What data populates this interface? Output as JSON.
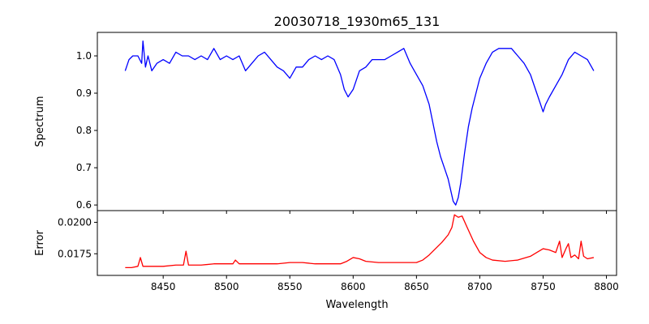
{
  "chart_data": [
    {
      "type": "line",
      "title": "20030718_1930m65_131",
      "xlabel": "",
      "ylabel": "Spectrum",
      "xlim": [
        8398,
        8808
      ],
      "ylim": [
        0.585,
        1.063
      ],
      "xticks": [
        8450,
        8500,
        8550,
        8600,
        8650,
        8700,
        8750,
        8800
      ],
      "yticks": [
        0.6,
        0.7,
        0.8,
        0.9,
        1.0
      ],
      "ytick_labels": [
        "0.6",
        "0.7",
        "0.8",
        "0.9",
        "1.0"
      ],
      "show_xtick_labels": false,
      "grid": false,
      "series": [
        {
          "color": "#0000ff",
          "x": [
            8420,
            8423,
            8426,
            8430,
            8433,
            8434,
            8436,
            8438,
            8441,
            8445,
            8450,
            8455,
            8460,
            8465,
            8470,
            8475,
            8480,
            8485,
            8490,
            8495,
            8500,
            8505,
            8510,
            8515,
            8520,
            8525,
            8530,
            8535,
            8540,
            8545,
            8550,
            8555,
            8560,
            8565,
            8570,
            8575,
            8580,
            8585,
            8590,
            8593,
            8596,
            8600,
            8605,
            8610,
            8615,
            8620,
            8625,
            8630,
            8635,
            8640,
            8645,
            8650,
            8655,
            8660,
            8663,
            8666,
            8669,
            8672,
            8675,
            8677,
            8679,
            8681,
            8683,
            8685,
            8688,
            8691,
            8694,
            8697,
            8700,
            8705,
            8710,
            8715,
            8720,
            8725,
            8730,
            8735,
            8740,
            8745,
            8748,
            8750,
            8752,
            8755,
            8760,
            8765,
            8770,
            8775,
            8780,
            8785,
            8790
          ],
          "y": [
            0.96,
            0.99,
            1.0,
            1.0,
            0.98,
            1.04,
            0.97,
            1.0,
            0.96,
            0.98,
            0.99,
            0.98,
            1.01,
            1.0,
            1.0,
            0.99,
            1.0,
            0.99,
            1.02,
            0.99,
            1.0,
            0.99,
            1.0,
            0.96,
            0.98,
            1.0,
            1.01,
            0.99,
            0.97,
            0.96,
            0.94,
            0.97,
            0.97,
            0.99,
            1.0,
            0.99,
            1.0,
            0.99,
            0.95,
            0.91,
            0.89,
            0.91,
            0.96,
            0.97,
            0.99,
            0.99,
            0.99,
            1.0,
            1.01,
            1.02,
            0.98,
            0.95,
            0.92,
            0.87,
            0.82,
            0.77,
            0.73,
            0.7,
            0.67,
            0.64,
            0.61,
            0.6,
            0.62,
            0.66,
            0.74,
            0.81,
            0.86,
            0.9,
            0.94,
            0.98,
            1.01,
            1.02,
            1.02,
            1.02,
            1.0,
            0.98,
            0.95,
            0.9,
            0.87,
            0.85,
            0.87,
            0.89,
            0.92,
            0.95,
            0.99,
            1.01,
            1.0,
            0.99,
            0.96
          ]
        }
      ]
    },
    {
      "type": "line",
      "title": "",
      "xlabel": "Wavelength",
      "ylabel": "Error",
      "xlim": [
        8398,
        8808
      ],
      "ylim": [
        0.01578,
        0.02093
      ],
      "xticks": [
        8450,
        8500,
        8550,
        8600,
        8650,
        8700,
        8750,
        8800
      ],
      "xtick_labels": [
        "8450",
        "8500",
        "8550",
        "8600",
        "8650",
        "8700",
        "8750",
        "8800"
      ],
      "yticks": [
        0.0175,
        0.02
      ],
      "ytick_labels": [
        "0.0175",
        "0.0200"
      ],
      "grid": false,
      "series": [
        {
          "color": "#ff0000",
          "x": [
            8420,
            8425,
            8430,
            8432,
            8434,
            8436,
            8440,
            8450,
            8460,
            8466,
            8468,
            8470,
            8480,
            8490,
            8500,
            8505,
            8507,
            8510,
            8520,
            8530,
            8540,
            8550,
            8560,
            8570,
            8580,
            8590,
            8595,
            8600,
            8605,
            8610,
            8620,
            8630,
            8640,
            8650,
            8655,
            8660,
            8665,
            8670,
            8675,
            8678,
            8680,
            8683,
            8686,
            8690,
            8695,
            8700,
            8705,
            8710,
            8720,
            8730,
            8740,
            8745,
            8750,
            8755,
            8760,
            8763,
            8765,
            8768,
            8770,
            8772,
            8775,
            8778,
            8780,
            8782,
            8785,
            8790
          ],
          "y": [
            0.0164,
            0.0164,
            0.0165,
            0.0172,
            0.0165,
            0.0165,
            0.0165,
            0.0165,
            0.0166,
            0.0166,
            0.0177,
            0.0166,
            0.0166,
            0.0167,
            0.0167,
            0.0167,
            0.017,
            0.0167,
            0.0167,
            0.0167,
            0.0167,
            0.0168,
            0.0168,
            0.0167,
            0.0167,
            0.0167,
            0.0169,
            0.0172,
            0.0171,
            0.0169,
            0.0168,
            0.0168,
            0.0168,
            0.0168,
            0.017,
            0.0174,
            0.0179,
            0.0184,
            0.019,
            0.0196,
            0.0206,
            0.0204,
            0.0205,
            0.0196,
            0.0185,
            0.0176,
            0.0172,
            0.017,
            0.0169,
            0.017,
            0.0173,
            0.0176,
            0.0179,
            0.0178,
            0.0176,
            0.0185,
            0.0172,
            0.0179,
            0.0183,
            0.0172,
            0.0174,
            0.0171,
            0.0185,
            0.0173,
            0.0171,
            0.0172
          ]
        }
      ]
    }
  ]
}
